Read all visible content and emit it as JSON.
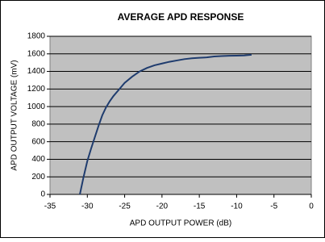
{
  "chart_data": {
    "type": "line",
    "title": "AVERAGE APD RESPONSE",
    "x_label": "APD OUTPUT POWER (dB)",
    "y_label": "APD OUTPUT VOLTAGE (mV)",
    "x": [
      -31,
      -30.5,
      -30,
      -29.5,
      -29,
      -28.5,
      -28,
      -27.5,
      -27,
      -26.5,
      -26,
      -25,
      -24,
      -23,
      -22,
      -21,
      -20,
      -19,
      -18,
      -17,
      -16,
      -15,
      -14,
      -13,
      -12,
      -11,
      -10,
      -9,
      -8
    ],
    "series": [
      {
        "name": "APD response",
        "color": "#1f3c6e",
        "values": [
          0,
          200,
          380,
          520,
          650,
          780,
          900,
          990,
          1060,
          1120,
          1170,
          1270,
          1340,
          1400,
          1440,
          1470,
          1490,
          1510,
          1525,
          1540,
          1550,
          1555,
          1560,
          1570,
          1575,
          1578,
          1580,
          1582,
          1590
        ]
      }
    ],
    "xlim": [
      -35,
      0
    ],
    "xticks": [
      -35,
      -30,
      -25,
      -20,
      -15,
      -10,
      -5,
      0
    ],
    "ylim": [
      0,
      1800
    ],
    "yticks": [
      0,
      200,
      400,
      600,
      800,
      1000,
      1200,
      1400,
      1600,
      1800
    ],
    "grid": true,
    "plot_background": "#c0c0c0"
  }
}
